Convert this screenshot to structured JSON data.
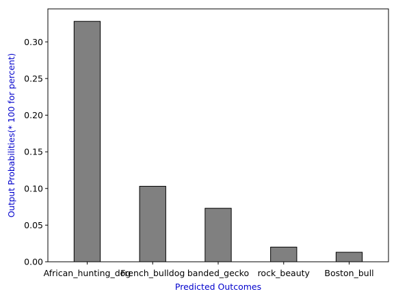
{
  "chart_data": {
    "type": "bar",
    "title": "",
    "xlabel": "Predicted Outcomes",
    "ylabel": "Output Probabilities(* 100 for percent)",
    "categories": [
      "African_hunting_dog",
      "French_bulldog",
      "banded_gecko",
      "rock_beauty",
      "Boston_bull"
    ],
    "values": [
      0.328,
      0.103,
      0.073,
      0.02,
      0.013
    ],
    "ylim": [
      0,
      0.345
    ],
    "yticks": [
      0.0,
      0.05,
      0.1,
      0.15,
      0.2,
      0.25,
      0.3
    ],
    "ytick_labels": [
      "0.00",
      "0.05",
      "0.10",
      "0.15",
      "0.20",
      "0.25",
      "0.30"
    ],
    "grid": false,
    "legend": "none",
    "colors": {
      "bar_fill": "#808080",
      "bar_edge": "#000000",
      "axis_label": "#0000cc"
    }
  }
}
